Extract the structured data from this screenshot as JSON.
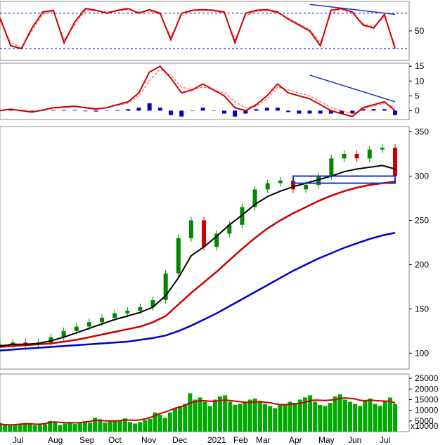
{
  "chart_data": [
    {
      "panel": "stochastic",
      "type": "line",
      "y_ticks": [
        50
      ],
      "ylim": [
        0,
        100
      ],
      "reference_lines": [
        80,
        20
      ],
      "series": [
        {
          "values": [
            72,
            25,
            20,
            55,
            82,
            85,
            30,
            65,
            88,
            85,
            80,
            85,
            88,
            80,
            86,
            80,
            35,
            80,
            85,
            86,
            85,
            82,
            30,
            80,
            85,
            86,
            82,
            70,
            60,
            50,
            25,
            85,
            88,
            82,
            60,
            55,
            78,
            20
          ]
        },
        {
          "values": [
            68,
            30,
            22,
            50,
            78,
            84,
            35,
            60,
            85,
            84,
            82,
            84,
            86,
            82,
            84,
            78,
            40,
            76,
            84,
            85,
            84,
            80,
            35,
            76,
            83,
            85,
            80,
            72,
            62,
            52,
            30,
            80,
            86,
            80,
            62,
            57,
            74,
            25
          ]
        }
      ],
      "trendline": {
        "from": [
          29,
          95
        ],
        "to": [
          37,
          78
        ]
      },
      "colors": {
        "line": "#cc0000",
        "signal": "#ff4444",
        "ref": "#0000aa",
        "trend": "#1a33cc"
      }
    },
    {
      "panel": "macd",
      "type": "line",
      "y_ticks": [
        15,
        10,
        5,
        0
      ],
      "ylim": [
        -3,
        16
      ],
      "series": [
        {
          "values": [
            0,
            0.5,
            0,
            -0.5,
            0.2,
            1,
            1.2,
            1.5,
            1,
            0.5,
            1,
            2,
            3,
            6,
            13,
            15,
            11,
            6,
            7,
            9,
            7,
            5,
            1,
            0,
            2,
            5,
            9,
            6,
            5,
            4,
            2,
            0,
            -1,
            -2,
            1,
            2,
            3,
            0
          ]
        },
        {
          "values": [
            0,
            0.3,
            0.2,
            -0.3,
            0,
            0.8,
            1,
            1.3,
            1.2,
            0.8,
            1,
            1.8,
            2.5,
            5,
            10,
            14,
            12,
            8,
            7,
            8,
            7,
            6,
            3,
            1,
            1.5,
            4,
            8,
            7,
            6,
            5,
            3,
            1,
            0,
            -1,
            0.5,
            1.5,
            2.5,
            1
          ]
        }
      ],
      "histogram": [
        0,
        0.2,
        -0.2,
        -0.6,
        0.2,
        0.2,
        0.2,
        0.2,
        -0.2,
        -0.3,
        0,
        0.2,
        0.5,
        1,
        2.5,
        1,
        -1.5,
        -2,
        0,
        1,
        0,
        -1,
        -2,
        -1,
        0.5,
        1,
        1,
        -0.5,
        -1,
        -1,
        -1,
        -1,
        -1,
        -1,
        0.5,
        0.5,
        0.5,
        -1.5
      ],
      "trendline": {
        "from": [
          29,
          12
        ],
        "to": [
          37,
          3
        ]
      },
      "colors": {
        "line": "#cc0000",
        "signal": "#ff4444",
        "hist": "#0000cc",
        "trend": "#1a33cc"
      }
    },
    {
      "panel": "price",
      "type": "line",
      "y_ticks": [
        350,
        300,
        250,
        200,
        150,
        100
      ],
      "ylim": [
        82,
        356
      ],
      "series": [
        {
          "values": [
            110,
            112,
            110,
            112,
            118,
            125,
            130,
            135,
            140,
            145,
            148,
            152,
            160,
            190,
            230,
            250,
            220,
            235,
            245,
            265,
            285,
            292,
            295,
            285,
            290,
            300,
            320,
            325,
            320,
            330,
            332,
            300
          ]
        },
        {
          "values": [
            108,
            110,
            110,
            111,
            114,
            118,
            123,
            128,
            133,
            138,
            142,
            146,
            152,
            165,
            185,
            210,
            220,
            232,
            245,
            256,
            268,
            277,
            283,
            288,
            292,
            296,
            300,
            305,
            308,
            310,
            312,
            308
          ]
        },
        {
          "values": [
            107,
            108,
            109,
            110,
            111,
            113,
            115,
            118,
            121,
            124,
            127,
            130,
            135,
            142,
            155,
            168,
            180,
            192,
            205,
            218,
            230,
            241,
            250,
            258,
            265,
            272,
            278,
            283,
            287,
            290,
            292,
            294
          ]
        },
        {
          "values": [
            103,
            104,
            105,
            106,
            107,
            108,
            109,
            110,
            111,
            112,
            113,
            115,
            117,
            120,
            125,
            131,
            138,
            145,
            153,
            161,
            169,
            177,
            185,
            193,
            200,
            207,
            213,
            219,
            224,
            229,
            233,
            236
          ]
        }
      ],
      "annotation_box": {
        "x_range": [
          23,
          31
        ],
        "y_range": [
          292,
          300
        ]
      },
      "colors": {
        "candle_up": "#008800",
        "candle_down": "#cc0000",
        "ma_black": "#000000",
        "ma_red": "#cc0000",
        "ma_blue": "#0000cc",
        "box": "#1a33cc"
      }
    },
    {
      "panel": "volume",
      "type": "bar",
      "y_ticks": [
        "25000",
        "20000",
        "15000",
        "10000",
        "5000"
      ],
      "unit_label": "x10000",
      "ylim": [
        0,
        27000
      ],
      "values": [
        4000,
        3500,
        3000,
        3200,
        3500,
        4000,
        3800,
        3000,
        3200,
        3500,
        5000,
        4500,
        3000,
        3800,
        4200,
        3600,
        3900,
        4800,
        4200,
        6500,
        5800,
        4200,
        5000,
        4800,
        5200,
        6200,
        4500,
        3800,
        4500,
        5500,
        6000,
        9000,
        8000,
        6500,
        9000,
        11000,
        12000,
        13000,
        18000,
        15000,
        16000,
        14000,
        12000,
        15000,
        16500,
        17000,
        14000,
        12500,
        13000,
        13500,
        15000,
        15500,
        14500,
        13000,
        12000,
        11000,
        12500,
        13000,
        14000,
        13500,
        15000,
        16000,
        17000,
        14000,
        12500,
        12000,
        13500,
        16500,
        17500,
        15000,
        14000,
        13000,
        12000,
        14500,
        15500,
        13000,
        12000,
        14000,
        16000,
        13000
      ],
      "ma": [
        3500,
        3300,
        3200,
        3300,
        3500,
        3700,
        3700,
        3500,
        3500,
        3800,
        4300,
        4500,
        4300,
        4200,
        4200,
        4100,
        4200,
        4500,
        4800,
        5300,
        5300,
        5000,
        5000,
        5000,
        5200,
        5500,
        5400,
        5300,
        5500,
        6000,
        6600,
        7500,
        8500,
        9200,
        10000,
        11000,
        11500,
        12300,
        13500,
        14000,
        14500,
        14500,
        14200,
        14300,
        14600,
        14800,
        14600,
        14300,
        14000,
        13800,
        13700,
        13900,
        14000,
        13800,
        13500,
        13000,
        12700,
        12600,
        12800,
        13000,
        13300,
        13800,
        14500,
        14800,
        14700,
        14600,
        14800,
        15000,
        15500,
        15800,
        15600,
        15300,
        14700,
        14500,
        14800,
        14600,
        14400,
        14300,
        14200,
        13500
      ],
      "colors": {
        "bar": "#00aa00",
        "ma": "#cc0000"
      }
    }
  ],
  "x_axis": {
    "months": [
      "Jul",
      "Aug",
      "Sep",
      "Oct",
      "Nov",
      "Dec",
      "2021",
      "Feb",
      "Mar",
      "Apr",
      "May",
      "Jun",
      "Jul"
    ]
  }
}
